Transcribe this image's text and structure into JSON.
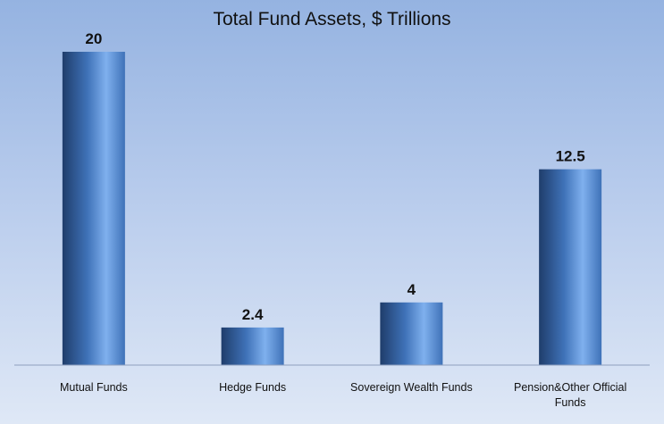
{
  "chart_data": {
    "type": "bar",
    "title": "Total Fund Assets, $ Trillions",
    "categories": [
      "Mutual Funds",
      "Hedge Funds",
      "Sovereign Wealth Funds",
      "Pension&Other Official Funds"
    ],
    "values": [
      20,
      2.4,
      4,
      12.5
    ],
    "value_labels": [
      "20",
      "2.4",
      "4",
      "12.5"
    ],
    "xlabel": "",
    "ylabel": "",
    "ylim": [
      0,
      22
    ],
    "grid": false,
    "legend": "none"
  },
  "colors": {
    "bar_dark": "#1f3d6b",
    "bar_mid": "#3f72b8",
    "bar_light": "#7fb0ee",
    "axis": "#8fa0bf",
    "background_top": "#95b3e1",
    "background_bottom": "#dfe8f6"
  }
}
